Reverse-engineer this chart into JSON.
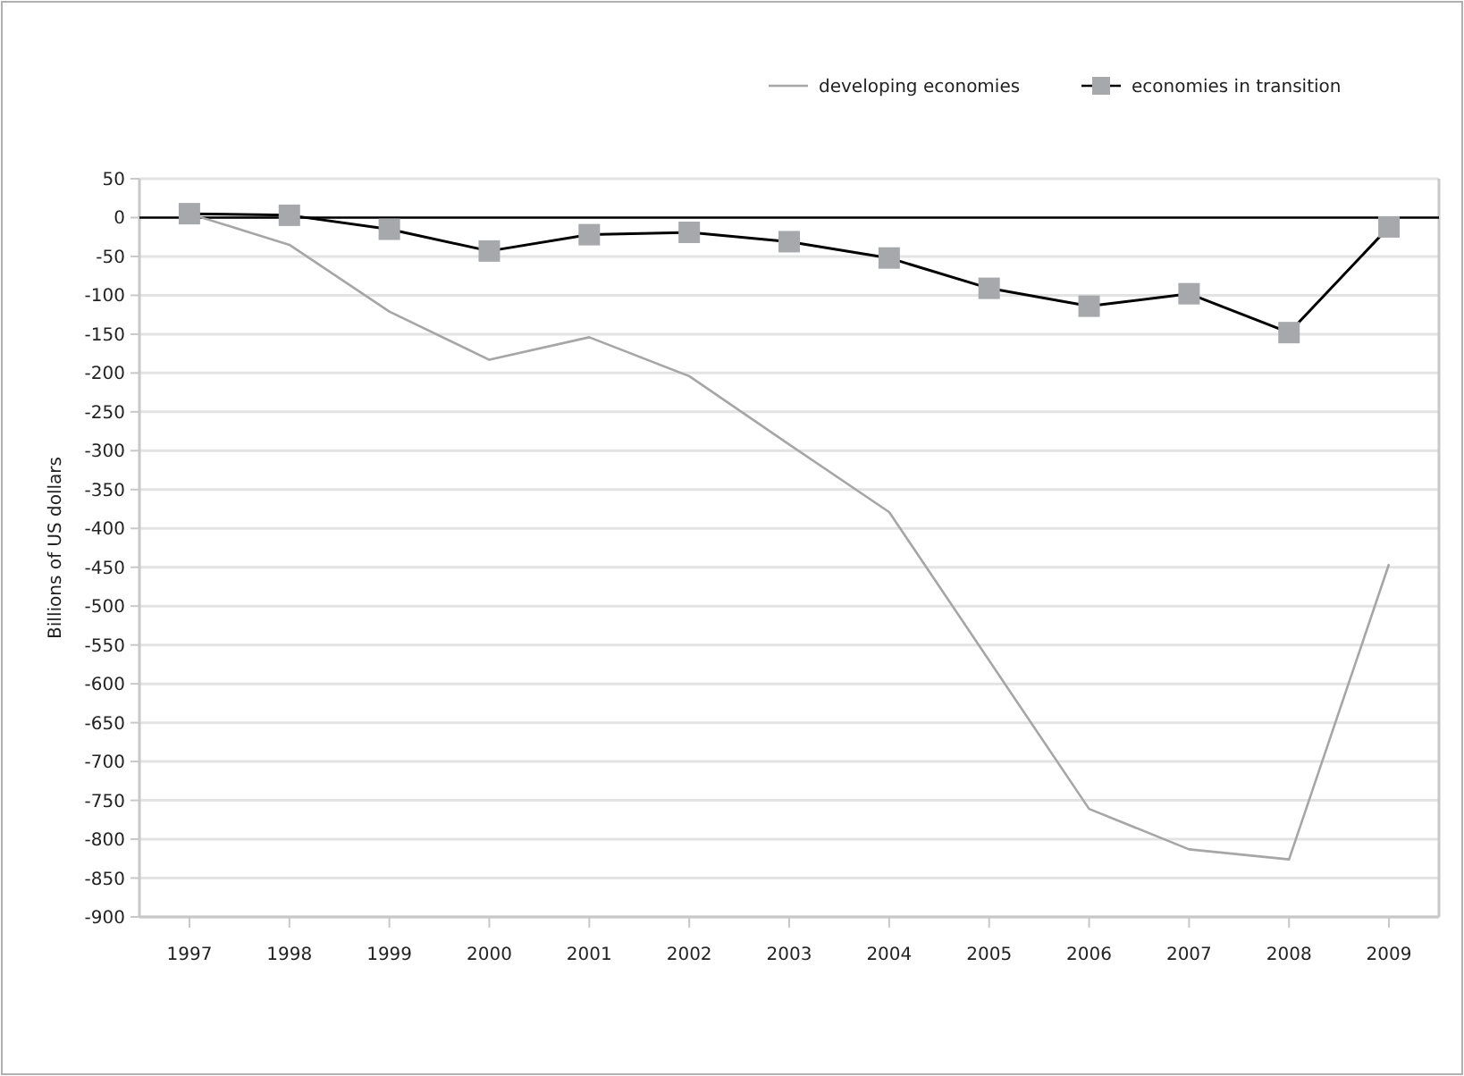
{
  "chart_data": {
    "type": "line",
    "ylabel": "Billions of US dollars",
    "categories": [
      "1997",
      "1998",
      "1999",
      "2000",
      "2001",
      "2002",
      "2003",
      "2004",
      "2005",
      "2006",
      "2007",
      "2008",
      "2009"
    ],
    "series": [
      {
        "name": "developing economies",
        "color": "#a6a6a6",
        "marker": "none",
        "values": [
          5,
          -35,
          -121,
          -183,
          -154,
          -204,
          -292,
          -379,
          -570,
          -761,
          -813,
          -826,
          -446
        ]
      },
      {
        "name": "economies in transition",
        "color": "#000000",
        "marker": "square",
        "values": [
          5,
          3,
          -15,
          -43,
          -22,
          -19,
          -31,
          -52,
          -91,
          -114,
          -98,
          -148,
          -12
        ]
      }
    ],
    "ylim": [
      -900,
      50
    ],
    "yticks": [
      50,
      0,
      -50,
      -100,
      -150,
      -200,
      -250,
      -300,
      -350,
      -400,
      -450,
      -500,
      -550,
      -600,
      -650,
      -700,
      -750,
      -800,
      -850,
      -900
    ],
    "ref_lines": [
      {
        "axis": "y",
        "value": 0,
        "color": "#000000"
      }
    ],
    "grid": "y",
    "legend": "top right"
  }
}
